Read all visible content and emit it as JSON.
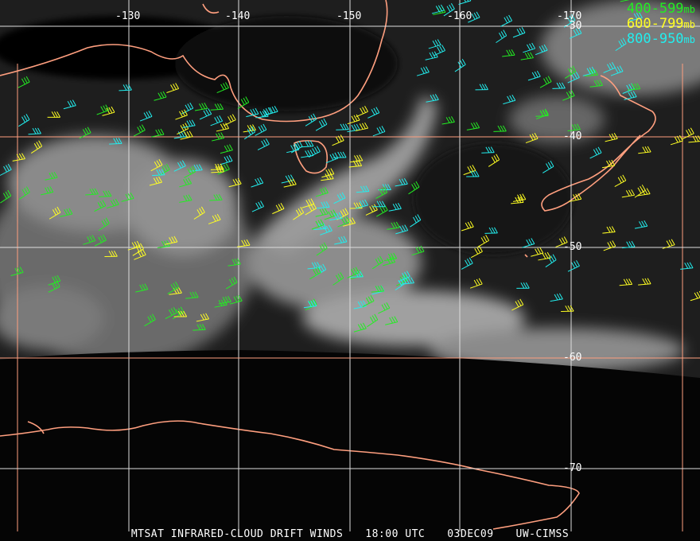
{
  "legend": [
    {
      "label": "400-599",
      "unit": "mb",
      "color": "#22ee22"
    },
    {
      "label": "600-799",
      "unit": "mb",
      "color": "#ffff22"
    },
    {
      "label": "800-950",
      "unit": "mb",
      "color": "#22eeee"
    }
  ],
  "longitude_labels": [
    "-130",
    "-140",
    "-150",
    "-160",
    "-170"
  ],
  "latitude_labels": [
    "-30",
    "-40",
    "-50",
    "-60",
    "-70"
  ],
  "caption": {
    "product": "MTSAT INFRARED-CLOUD DRIFT WINDS",
    "time": "18:00 UTC",
    "date": "03DEC09",
    "source": "UW-CIMSS"
  },
  "colors": {
    "coastline": "#ff9f7f",
    "grid_white": "#dddddd",
    "grid_orange": "#ff9f7f"
  }
}
